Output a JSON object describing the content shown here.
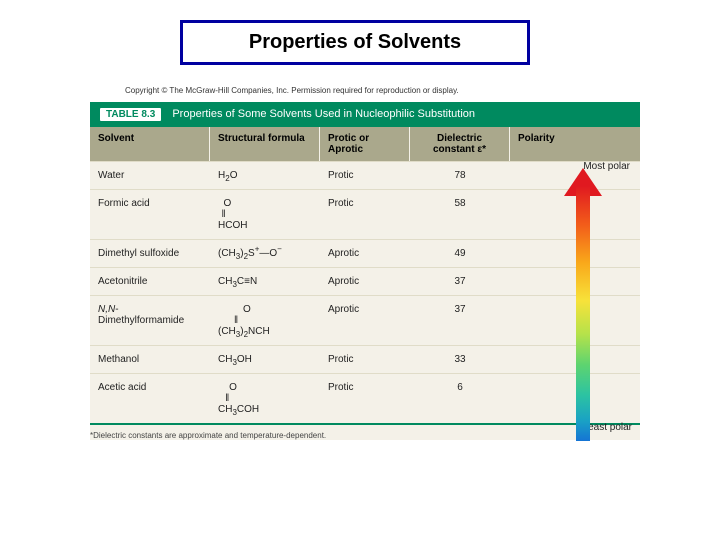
{
  "title": "Properties of Solvents",
  "copyright": "Copyright © The McGraw-Hill Companies, Inc. Permission required for reproduction or display.",
  "table": {
    "label": "TABLE 8.3",
    "caption": "Properties of Some Solvents Used in Nucleophilic Substitution",
    "header_bg": "#008a5f",
    "row_bg": "#f4f1e8",
    "colhead_bg": "#aaa88c",
    "columns": {
      "c1": "Solvent",
      "c2": "Structural formula",
      "c3": "Protic or Aprotic",
      "c4_a": "Dielectric",
      "c4_b": "constant ε*",
      "c5": "Polarity"
    },
    "rows": [
      {
        "solvent": "Water",
        "formula_html": "H₂O",
        "type": "Protic",
        "dielectric": "78"
      },
      {
        "solvent": "Formic acid",
        "formula_html": "O<br>‖<br>HCOH",
        "type": "Protic",
        "dielectric": "58"
      },
      {
        "solvent": "Dimethyl sulfoxide",
        "formula_html": "(CH₃)₂S⁺—O⁻",
        "type": "Aprotic",
        "dielectric": "49"
      },
      {
        "solvent": "Acetonitrile",
        "formula_html": "CH₃C≡N",
        "type": "Aprotic",
        "dielectric": "37"
      },
      {
        "solvent": "N,N-Dimethylformamide",
        "formula_html": "O<br>‖<br>(CH₃)₂NCH",
        "type": "Aprotic",
        "dielectric": "37"
      },
      {
        "solvent": "Methanol",
        "formula_html": "CH₃OH",
        "type": "Protic",
        "dielectric": "33"
      },
      {
        "solvent": "Acetic acid",
        "formula_html": "O<br>‖<br>CH₃COH",
        "type": "Protic",
        "dielectric": "6"
      }
    ],
    "footnote": "*Dielectric constants are approximate and temperature-dependent.",
    "arrow": {
      "top_label": "Most polar",
      "bottom_label": "Least polar",
      "gradient": [
        "#e01920",
        "#f25c1a",
        "#f9a81a",
        "#f7e23a",
        "#b6e24a",
        "#5ed46f",
        "#2cc3a2",
        "#1aa2c4",
        "#1574d4"
      ]
    }
  }
}
